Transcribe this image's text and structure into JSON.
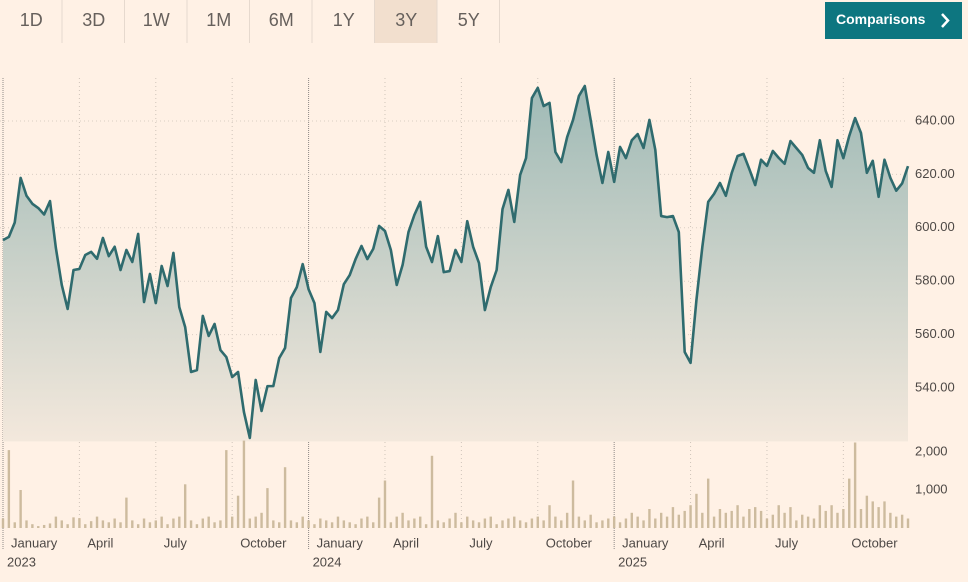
{
  "buttons": [
    "1D",
    "3D",
    "1W",
    "1M",
    "6M",
    "1Y",
    "3Y",
    "5Y"
  ],
  "selected_button": "3Y",
  "comparisons_button": "Comparisons",
  "chart_data": [
    {
      "type": "area",
      "categories": [
        "January",
        null,
        null,
        null,
        null,
        null,
        null,
        null,
        null,
        null,
        null,
        null,
        null,
        "April",
        null,
        null,
        null,
        null,
        null,
        null,
        null,
        null,
        null,
        null,
        null,
        null,
        "July",
        null,
        null,
        null,
        null,
        null,
        null,
        null,
        null,
        null,
        null,
        null,
        null,
        "October",
        null,
        null,
        null,
        null,
        null,
        null,
        null,
        null,
        null,
        null,
        null,
        null,
        "January",
        null,
        null,
        null,
        null,
        null,
        null,
        null,
        null,
        null,
        null,
        null,
        null,
        "April",
        null,
        null,
        null,
        null,
        null,
        null,
        null,
        null,
        null,
        null,
        null,
        null,
        "July",
        null,
        null,
        null,
        null,
        null,
        null,
        null,
        null,
        null,
        null,
        null,
        null,
        "October",
        null,
        null,
        null,
        null,
        null,
        null,
        null,
        null,
        null,
        null,
        null,
        null,
        "January",
        null,
        null,
        null,
        null,
        null,
        null,
        null,
        null,
        null,
        null,
        null,
        null,
        "April",
        null,
        null,
        null,
        null,
        null,
        null,
        null,
        null,
        null,
        null,
        null,
        null,
        "July",
        null,
        null,
        null,
        null,
        null,
        null,
        null,
        null,
        null,
        null,
        null,
        null,
        "October",
        null,
        null,
        null,
        null,
        null,
        null,
        null,
        null,
        null,
        null,
        null
      ],
      "category_years": [
        "2023",
        null,
        null,
        null,
        null,
        null,
        null,
        null,
        null,
        null,
        null,
        null,
        null,
        null,
        null,
        null,
        null,
        null,
        null,
        null,
        null,
        null,
        null,
        null,
        null,
        null,
        null,
        null,
        null,
        null,
        null,
        null,
        null,
        null,
        null,
        null,
        null,
        null,
        null,
        null,
        null,
        null,
        null,
        null,
        null,
        null,
        null,
        null,
        null,
        null,
        null,
        null,
        "2024",
        null,
        null,
        null,
        null,
        null,
        null,
        null,
        null,
        null,
        null,
        null,
        null,
        null,
        null,
        null,
        null,
        null,
        null,
        null,
        null,
        null,
        null,
        null,
        null,
        null,
        null,
        null,
        null,
        null,
        null,
        null,
        null,
        null,
        null,
        null,
        null,
        null,
        null,
        null,
        null,
        null,
        null,
        null,
        null,
        null,
        null,
        null,
        null,
        null,
        null,
        null,
        "2025",
        null,
        null,
        null,
        null,
        null,
        null,
        null,
        null,
        null,
        null,
        null,
        null,
        null,
        null,
        null,
        null,
        null,
        null,
        null,
        null,
        null,
        null,
        null,
        null,
        null,
        null,
        null,
        null,
        null,
        null,
        null,
        null,
        null,
        null,
        null,
        null,
        null,
        null,
        null,
        null,
        null,
        null,
        null,
        null,
        null,
        null,
        null,
        null,
        null
      ],
      "values": [
        595.4,
        596.6,
        602,
        618.7,
        612,
        609,
        607.4,
        605,
        610,
        592.4,
        578.6,
        569.6,
        584.2,
        584.6,
        589.8,
        591,
        588.4,
        596.2,
        589.4,
        592.9,
        584.2,
        591.7,
        587.2,
        597.7,
        572.2,
        582.7,
        571.8,
        585.7,
        578.2,
        590.6,
        570.3,
        562.8,
        546,
        546.7,
        567,
        559.5,
        564,
        554.2,
        551.6,
        544.1,
        546,
        531,
        521.3,
        543,
        531.4,
        540.7,
        540.7,
        551.2,
        555,
        573.7,
        577.8,
        586.4,
        577,
        571.8,
        553.5,
        568.5,
        566.2,
        569.2,
        578.9,
        582.3,
        588.3,
        593.2,
        588.3,
        592.1,
        600.7,
        598.8,
        591.7,
        578.6,
        586.1,
        598.4,
        604.8,
        609.7,
        592.9,
        587.2,
        596.9,
        583.4,
        583.8,
        591.7,
        587.2,
        602.5,
        592.9,
        586.8,
        569.2,
        577.8,
        584.2,
        607,
        614.2,
        602.2,
        619.8,
        626.1,
        648.6,
        652.4,
        645.6,
        646.8,
        628.4,
        624.6,
        634,
        640.4,
        649.4,
        653.1,
        640.4,
        627.3,
        616.8,
        628.4,
        617.2,
        630.3,
        626.1,
        632.8,
        635.1,
        629.9,
        640.4,
        629.2,
        604.4,
        604,
        604.4,
        598.4,
        553.5,
        549.4,
        573,
        592.8,
        609.7,
        612.7,
        616.8,
        612,
        620.5,
        626.9,
        627.7,
        622,
        616,
        625.5,
        623.2,
        628.8,
        626.2,
        624,
        632.5,
        629.9,
        627.3,
        622.4,
        620.6,
        632.8,
        621.3,
        615.3,
        632.8,
        626.1,
        634.4,
        641.1,
        635.5,
        620.6,
        625.1,
        611.6,
        625.5,
        618.7,
        613.9,
        616.6,
        623.1
      ],
      "color": "#2f6b6e",
      "ylim": [
        520,
        656
      ],
      "yticks": [
        {
          "value": 540,
          "label": "540.00"
        },
        {
          "value": 560,
          "label": "560.00"
        },
        {
          "value": 580,
          "label": "580.00"
        },
        {
          "value": 600,
          "label": "600.00"
        },
        {
          "value": 620,
          "label": "620.00"
        },
        {
          "value": 640,
          "label": "640.00"
        }
      ],
      "grid": true
    },
    {
      "type": "bar",
      "values": [
        250,
        2050,
        150,
        1000,
        200,
        100,
        50,
        80,
        120,
        300,
        200,
        100,
        280,
        260,
        100,
        180,
        300,
        200,
        150,
        250,
        150,
        800,
        200,
        100,
        250,
        150,
        200,
        300,
        100,
        250,
        300,
        1150,
        200,
        100,
        250,
        300,
        150,
        200,
        2050,
        300,
        850,
        2300,
        250,
        300,
        400,
        1050,
        200,
        150,
        1600,
        200,
        150,
        300,
        200,
        100,
        250,
        200,
        150,
        300,
        200,
        150,
        100,
        250,
        300,
        150,
        800,
        1250,
        150,
        300,
        400,
        200,
        250,
        300,
        100,
        1900,
        200,
        150,
        250,
        400,
        150,
        300,
        200,
        150,
        250,
        300,
        100,
        200,
        250,
        300,
        200,
        150,
        250,
        300,
        200,
        600,
        300,
        200,
        400,
        1250,
        300,
        200,
        350,
        150,
        200,
        250,
        300,
        150,
        250,
        400,
        300,
        200,
        500,
        250,
        400,
        300,
        550,
        350,
        450,
        600,
        900,
        400,
        1300,
        300,
        500,
        400,
        450,
        600,
        300,
        500,
        550,
        450,
        250,
        350,
        600,
        400,
        550,
        200,
        350,
        300,
        250,
        600,
        450,
        600,
        400,
        500,
        1300,
        2250,
        500,
        850,
        700,
        550,
        700,
        400,
        300,
        350,
        250
      ],
      "color": "#cdbb9e",
      "ylim": [
        0,
        2300
      ],
      "yticks": [
        {
          "value": 1000,
          "label": "1,000"
        },
        {
          "value": 2000,
          "label": "2,000"
        }
      ]
    }
  ]
}
